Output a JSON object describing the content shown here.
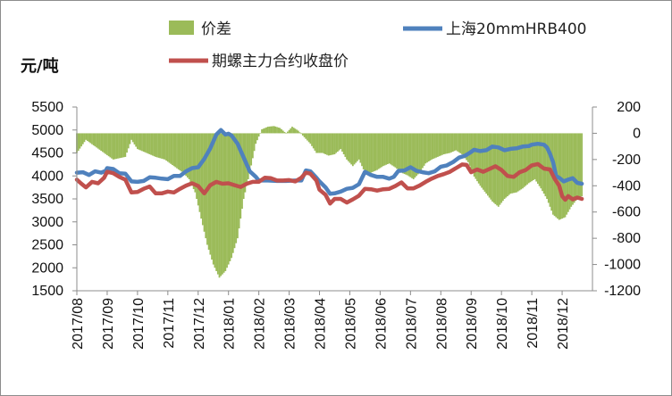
{
  "chart_data": {
    "type": "line",
    "title": "",
    "unit_label": "元/吨",
    "legend": [
      {
        "key": "spread",
        "label": "价差",
        "color": "#9bbb59",
        "kind": "bar"
      },
      {
        "key": "spot",
        "label": "上海20mmHRB400",
        "color": "#4f81bd",
        "kind": "line"
      },
      {
        "key": "futures",
        "label": "期螺主力合约收盘价",
        "color": "#c0504d",
        "kind": "line"
      }
    ],
    "legend_position": "top",
    "left_axis": {
      "range": [
        1500,
        5500
      ],
      "ticks": [
        "5500",
        "5000",
        "4500",
        "4000",
        "3500",
        "3000",
        "2500",
        "2000",
        "1500"
      ]
    },
    "right_axis": {
      "range": [
        -1200,
        200
      ],
      "ticks": [
        "200",
        "0",
        "-200",
        "-400",
        "-600",
        "-800",
        "-1000",
        "-1200"
      ]
    },
    "x_axis": {
      "labels": [
        "2017/08",
        "2017/09",
        "2017/10",
        "2017/11",
        "2017/12",
        "2018/01",
        "2018/02",
        "2018/03",
        "2018/04",
        "2018/05",
        "2018/06",
        "2018/07",
        "2018/08",
        "2018/09",
        "2018/10",
        "2018/11",
        "2018/12"
      ],
      "range": [
        0,
        16.65
      ]
    },
    "grid": false,
    "series": [
      {
        "name": "上海20mmHRB400",
        "axis": "left",
        "color": "#4f81bd",
        "points": [
          [
            0,
            4070
          ],
          [
            0.2,
            4080
          ],
          [
            0.4,
            4020
          ],
          [
            0.6,
            4100
          ],
          [
            0.8,
            4070
          ],
          [
            0.95,
            4110
          ],
          [
            1.0,
            4170
          ],
          [
            1.2,
            4150
          ],
          [
            1.4,
            4060
          ],
          [
            1.6,
            4050
          ],
          [
            1.8,
            3880
          ],
          [
            2.0,
            3870
          ],
          [
            2.2,
            3890
          ],
          [
            2.4,
            3970
          ],
          [
            2.6,
            3960
          ],
          [
            2.8,
            3940
          ],
          [
            3.0,
            3930
          ],
          [
            3.2,
            4000
          ],
          [
            3.4,
            4000
          ],
          [
            3.6,
            4100
          ],
          [
            3.8,
            4170
          ],
          [
            4.0,
            4190
          ],
          [
            4.2,
            4370
          ],
          [
            4.4,
            4600
          ],
          [
            4.6,
            4900
          ],
          [
            4.75,
            5000
          ],
          [
            4.9,
            4900
          ],
          [
            5.0,
            4920
          ],
          [
            5.1,
            4880
          ],
          [
            5.3,
            4700
          ],
          [
            5.5,
            4400
          ],
          [
            5.7,
            4100
          ],
          [
            5.9,
            3980
          ],
          [
            6.0,
            3900
          ],
          [
            6.3,
            3900
          ],
          [
            6.6,
            3890
          ],
          [
            6.9,
            3890
          ],
          [
            7.2,
            3900
          ],
          [
            7.4,
            3900
          ],
          [
            7.55,
            4120
          ],
          [
            7.7,
            4100
          ],
          [
            7.9,
            3960
          ],
          [
            8.0,
            3880
          ],
          [
            8.2,
            3750
          ],
          [
            8.35,
            3610
          ],
          [
            8.5,
            3620
          ],
          [
            8.7,
            3660
          ],
          [
            8.9,
            3720
          ],
          [
            9.1,
            3740
          ],
          [
            9.3,
            3820
          ],
          [
            9.5,
            4090
          ],
          [
            9.7,
            4020
          ],
          [
            9.9,
            3980
          ],
          [
            10.1,
            3980
          ],
          [
            10.3,
            3940
          ],
          [
            10.45,
            3980
          ],
          [
            10.6,
            4110
          ],
          [
            10.8,
            4120
          ],
          [
            11.0,
            4190
          ],
          [
            11.2,
            4110
          ],
          [
            11.4,
            4080
          ],
          [
            11.6,
            4060
          ],
          [
            11.8,
            4100
          ],
          [
            12.0,
            4200
          ],
          [
            12.2,
            4230
          ],
          [
            12.4,
            4300
          ],
          [
            12.6,
            4400
          ],
          [
            12.8,
            4440
          ],
          [
            12.95,
            4500
          ],
          [
            13.1,
            4570
          ],
          [
            13.3,
            4540
          ],
          [
            13.5,
            4560
          ],
          [
            13.7,
            4640
          ],
          [
            13.9,
            4620
          ],
          [
            14.1,
            4560
          ],
          [
            14.3,
            4590
          ],
          [
            14.5,
            4600
          ],
          [
            14.7,
            4640
          ],
          [
            14.9,
            4650
          ],
          [
            15.0,
            4680
          ],
          [
            15.2,
            4700
          ],
          [
            15.4,
            4680
          ],
          [
            15.5,
            4620
          ],
          [
            15.6,
            4480
          ],
          [
            15.7,
            4300
          ],
          [
            15.8,
            4000
          ],
          [
            15.9,
            3960
          ],
          [
            16.05,
            3880
          ],
          [
            16.2,
            3920
          ],
          [
            16.35,
            3950
          ],
          [
            16.5,
            3850
          ],
          [
            16.65,
            3830
          ]
        ]
      },
      {
        "name": "期螺主力合约收盘价",
        "axis": "left",
        "color": "#c0504d",
        "points": [
          [
            0,
            3920
          ],
          [
            0.15,
            3830
          ],
          [
            0.3,
            3750
          ],
          [
            0.5,
            3870
          ],
          [
            0.7,
            3840
          ],
          [
            0.9,
            3960
          ],
          [
            1.0,
            4090
          ],
          [
            1.2,
            4060
          ],
          [
            1.4,
            3980
          ],
          [
            1.6,
            3920
          ],
          [
            1.8,
            3640
          ],
          [
            2.0,
            3650
          ],
          [
            2.2,
            3720
          ],
          [
            2.4,
            3770
          ],
          [
            2.6,
            3620
          ],
          [
            2.8,
            3620
          ],
          [
            3.0,
            3660
          ],
          [
            3.2,
            3640
          ],
          [
            3.4,
            3720
          ],
          [
            3.6,
            3790
          ],
          [
            3.8,
            3840
          ],
          [
            4.0,
            3780
          ],
          [
            4.2,
            3620
          ],
          [
            4.4,
            3800
          ],
          [
            4.6,
            3870
          ],
          [
            4.8,
            3830
          ],
          [
            5.0,
            3840
          ],
          [
            5.2,
            3800
          ],
          [
            5.4,
            3760
          ],
          [
            5.6,
            3830
          ],
          [
            5.8,
            3870
          ],
          [
            6.0,
            3870
          ],
          [
            6.2,
            3960
          ],
          [
            6.4,
            3950
          ],
          [
            6.6,
            3900
          ],
          [
            6.8,
            3900
          ],
          [
            7.0,
            3910
          ],
          [
            7.2,
            3880
          ],
          [
            7.4,
            3960
          ],
          [
            7.55,
            4070
          ],
          [
            7.7,
            4050
          ],
          [
            7.9,
            3900
          ],
          [
            8.0,
            3700
          ],
          [
            8.2,
            3590
          ],
          [
            8.35,
            3400
          ],
          [
            8.5,
            3500
          ],
          [
            8.7,
            3500
          ],
          [
            8.9,
            3420
          ],
          [
            9.1,
            3490
          ],
          [
            9.3,
            3570
          ],
          [
            9.5,
            3720
          ],
          [
            9.7,
            3710
          ],
          [
            9.9,
            3680
          ],
          [
            10.1,
            3710
          ],
          [
            10.3,
            3720
          ],
          [
            10.5,
            3780
          ],
          [
            10.7,
            3860
          ],
          [
            10.9,
            3730
          ],
          [
            11.1,
            3730
          ],
          [
            11.3,
            3790
          ],
          [
            11.5,
            3870
          ],
          [
            11.7,
            3940
          ],
          [
            11.9,
            4000
          ],
          [
            12.1,
            4040
          ],
          [
            12.3,
            4090
          ],
          [
            12.5,
            4170
          ],
          [
            12.7,
            4250
          ],
          [
            12.85,
            4240
          ],
          [
            13.0,
            4080
          ],
          [
            13.2,
            4140
          ],
          [
            13.4,
            4090
          ],
          [
            13.6,
            4150
          ],
          [
            13.8,
            4210
          ],
          [
            14.0,
            4130
          ],
          [
            14.2,
            4000
          ],
          [
            14.4,
            3980
          ],
          [
            14.6,
            4080
          ],
          [
            14.8,
            4130
          ],
          [
            15.0,
            4230
          ],
          [
            15.2,
            4260
          ],
          [
            15.4,
            4160
          ],
          [
            15.6,
            4140
          ],
          [
            15.75,
            3940
          ],
          [
            15.9,
            3790
          ],
          [
            16.0,
            3560
          ],
          [
            16.1,
            3480
          ],
          [
            16.2,
            3560
          ],
          [
            16.35,
            3490
          ],
          [
            16.5,
            3530
          ],
          [
            16.65,
            3500
          ]
        ]
      },
      {
        "name": "价差",
        "axis": "right",
        "color": "#9bbb59",
        "points": [
          [
            0,
            -150
          ],
          [
            0.3,
            -50
          ],
          [
            0.6,
            -100
          ],
          [
            0.9,
            -150
          ],
          [
            1.2,
            -200
          ],
          [
            1.6,
            -180
          ],
          [
            1.8,
            -50
          ],
          [
            2.0,
            -120
          ],
          [
            2.3,
            -150
          ],
          [
            2.6,
            -180
          ],
          [
            2.9,
            -200
          ],
          [
            3.2,
            -250
          ],
          [
            3.5,
            -300
          ],
          [
            3.7,
            -350
          ],
          [
            3.9,
            -450
          ],
          [
            4.1,
            -650
          ],
          [
            4.3,
            -850
          ],
          [
            4.5,
            -1000
          ],
          [
            4.7,
            -1100
          ],
          [
            4.9,
            -1050
          ],
          [
            5.1,
            -950
          ],
          [
            5.3,
            -800
          ],
          [
            5.5,
            -500
          ],
          [
            5.7,
            -300
          ],
          [
            5.9,
            -80
          ],
          [
            6.1,
            30
          ],
          [
            6.3,
            50
          ],
          [
            6.5,
            55
          ],
          [
            6.7,
            40
          ],
          [
            6.9,
            0
          ],
          [
            7.1,
            50
          ],
          [
            7.3,
            20
          ],
          [
            7.5,
            -30
          ],
          [
            7.7,
            -80
          ],
          [
            7.9,
            -150
          ],
          [
            8.1,
            -150
          ],
          [
            8.3,
            -170
          ],
          [
            8.5,
            -160
          ],
          [
            8.7,
            -120
          ],
          [
            8.9,
            -200
          ],
          [
            9.1,
            -250
          ],
          [
            9.3,
            -200
          ],
          [
            9.5,
            -300
          ],
          [
            9.7,
            -300
          ],
          [
            9.9,
            -280
          ],
          [
            10.1,
            -250
          ],
          [
            10.3,
            -230
          ],
          [
            10.5,
            -260
          ],
          [
            10.7,
            -300
          ],
          [
            10.9,
            -320
          ],
          [
            11.1,
            -350
          ],
          [
            11.3,
            -300
          ],
          [
            11.5,
            -230
          ],
          [
            11.7,
            -200
          ],
          [
            11.9,
            -180
          ],
          [
            12.1,
            -160
          ],
          [
            12.3,
            -150
          ],
          [
            12.5,
            -130
          ],
          [
            12.7,
            -160
          ],
          [
            12.9,
            -220
          ],
          [
            13.1,
            -330
          ],
          [
            13.3,
            -400
          ],
          [
            13.5,
            -460
          ],
          [
            13.7,
            -520
          ],
          [
            13.9,
            -560
          ],
          [
            14.1,
            -500
          ],
          [
            14.3,
            -460
          ],
          [
            14.5,
            -450
          ],
          [
            14.7,
            -420
          ],
          [
            14.9,
            -380
          ],
          [
            15.1,
            -350
          ],
          [
            15.3,
            -420
          ],
          [
            15.5,
            -500
          ],
          [
            15.7,
            -620
          ],
          [
            15.9,
            -660
          ],
          [
            16.1,
            -640
          ],
          [
            16.3,
            -560
          ],
          [
            16.5,
            -500
          ],
          [
            16.65,
            -480
          ]
        ]
      }
    ]
  }
}
